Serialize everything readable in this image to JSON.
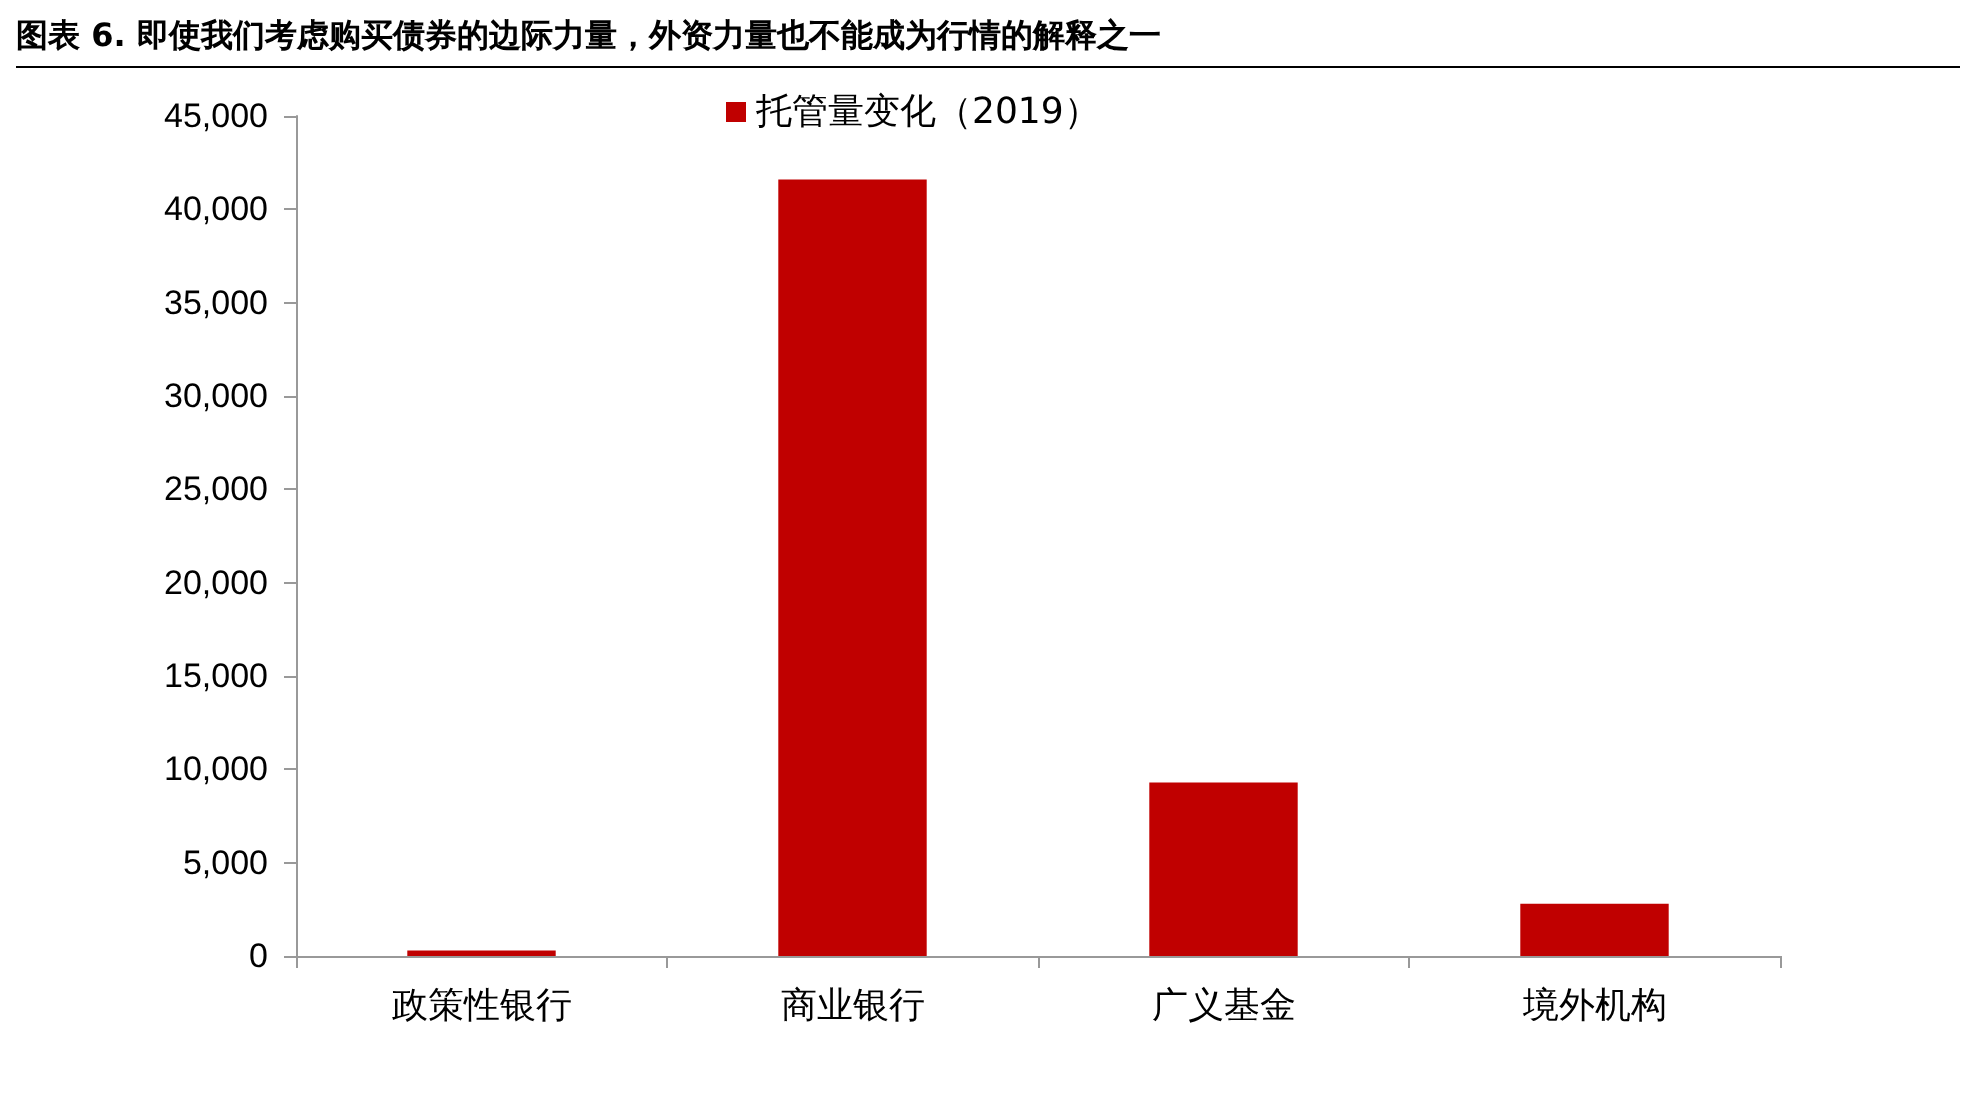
{
  "chart_data": {
    "type": "bar",
    "title": "图表 6. 即使我们考虑购买债券的边际力量，外资力量也不能成为行情的解释之一",
    "categories": [
      "政策性银行",
      "商业银行",
      "广义基金",
      "境外机构"
    ],
    "series": [
      {
        "name": "托管量变化（2019）",
        "color": "#c00000",
        "values": [
          300,
          41600,
          9300,
          2800
        ]
      }
    ],
    "ylim": [
      0,
      45000
    ],
    "yticks": [
      0,
      {
        "value": 5000,
        "label": "5,000"
      },
      {
        "value": 10000,
        "label": "10,000"
      },
      {
        "value": 15000,
        "label": "15,000"
      },
      {
        "value": 20000,
        "label": "20,000"
      },
      {
        "value": 25000,
        "label": "25,000"
      },
      {
        "value": 30000,
        "label": "30,000"
      },
      {
        "value": 35000,
        "label": "35,000"
      },
      {
        "value": 40000,
        "label": "40,000"
      },
      {
        "value": 45000,
        "label": "45,000"
      }
    ],
    "grid": false,
    "legend": "top"
  }
}
